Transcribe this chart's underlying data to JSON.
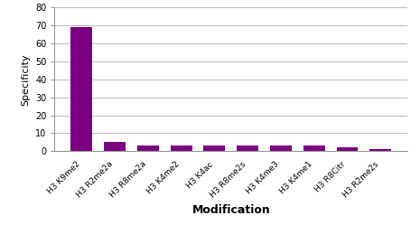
{
  "categories": [
    "H3 K9me2",
    "H3 R2me2a",
    "H3 R8me2a",
    "H3 K4me2",
    "H3 K4ac",
    "H3 R8me2s",
    "H3 K4me3",
    "H3 K4me1",
    "H3 R8Citr",
    "H3 R2me2s"
  ],
  "values": [
    69,
    5,
    3,
    3,
    3,
    3,
    3,
    3,
    2,
    1
  ],
  "bar_color": "#7B0081",
  "ylabel": "Specificity",
  "xlabel": "Modification",
  "ylim": [
    0,
    80
  ],
  "yticks": [
    0,
    10,
    20,
    30,
    40,
    50,
    60,
    70,
    80
  ],
  "background_color": "#ffffff",
  "grid_color": "#c0c0c0",
  "ylabel_fontsize": 8,
  "xlabel_fontsize": 9,
  "tick_fontsize": 7,
  "xtick_fontsize": 6.5
}
